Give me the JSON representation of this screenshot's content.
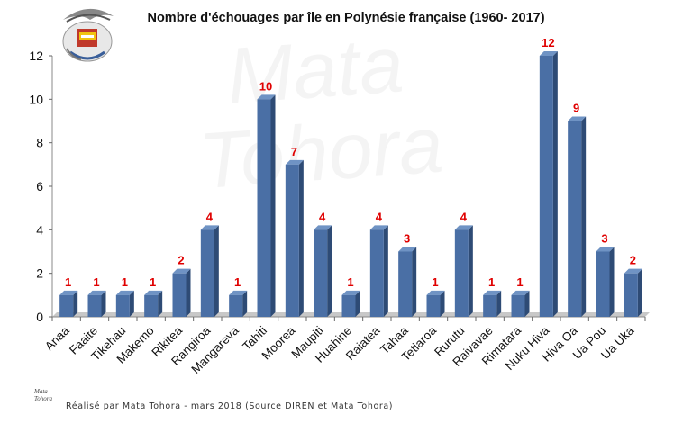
{
  "title": "Nombre d'échouages par île en Polynésie française  (1960- 2017)",
  "footer": "Réalisé par Mata Tohora - mars 2018     (Source DIREN et Mata Tohora)",
  "watermark": {
    "line1": "Mata",
    "line2": "Tohora"
  },
  "small_logo": {
    "line1": "Mata",
    "line2": "Tohora"
  },
  "colors": {
    "bar": "#4a6fa5",
    "bar_side": "#2e4b75",
    "bar_top": "#6f93c4",
    "label": "#e00000",
    "floor": "#c8c8c8"
  },
  "chart_data": {
    "type": "bar",
    "categories": [
      "Anaa",
      "Faaite",
      "Tikehau",
      "Makemo",
      "Rikitea",
      "Rangiroa",
      "Mangareva",
      "Tahiti",
      "Moorea",
      "Maupiti",
      "Huahine",
      "Raiatea",
      "Tahaa",
      "Tetiaroa",
      "Rurutu",
      "Raivavae",
      "Rimatara",
      "Nuku Hiva",
      "Hiva Oa",
      "Ua Pou",
      "Ua Uka"
    ],
    "values": [
      1,
      1,
      1,
      1,
      2,
      4,
      1,
      10,
      7,
      4,
      1,
      4,
      3,
      1,
      4,
      1,
      1,
      12,
      9,
      3,
      2
    ],
    "data_labels": [
      "1",
      "1",
      "1",
      "1",
      "2",
      "4",
      "1",
      "10",
      "7",
      "4",
      "1",
      "4",
      "3",
      "1",
      "4",
      "1",
      "1",
      "12",
      "9",
      "3",
      "2"
    ],
    "yticks": [
      "0",
      "2",
      "4",
      "6",
      "8",
      "10",
      "12"
    ],
    "ylim": [
      0,
      12
    ],
    "grid": false,
    "legend": "none"
  }
}
